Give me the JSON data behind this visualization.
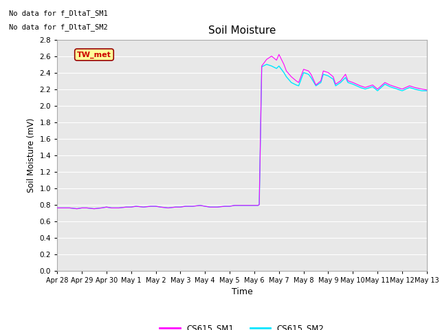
{
  "title": "Soil Moisture",
  "ylabel": "Soil Moisture (mV)",
  "xlabel": "Time",
  "ylim": [
    0.0,
    2.8
  ],
  "yticks": [
    0.0,
    0.2,
    0.4,
    0.6,
    0.8,
    1.0,
    1.2,
    1.4,
    1.6,
    1.8,
    2.0,
    2.2,
    2.4,
    2.6,
    2.8
  ],
  "no_data_text1": "No data for f_DltaT_SM1",
  "no_data_text2": "No data for f_DltaT_SM2",
  "tw_met_label": "TW_met",
  "legend_labels": [
    "CS615_SM1",
    "CS615_SM2"
  ],
  "line_colors": [
    "#ff00ff",
    "#00e5ff"
  ],
  "background_color": "#e8e8e8",
  "x_tick_labels": [
    "Apr 28",
    "Apr 29",
    "Apr 30",
    "May 1",
    "May 2",
    "May 3",
    "May 4",
    "May 5",
    "May 6",
    "May 7",
    "May 8",
    "May 9",
    "May 10",
    "May 11",
    "May 12",
    "May 13"
  ],
  "sm1_x": [
    0,
    0.2,
    0.5,
    0.8,
    1.0,
    1.2,
    1.5,
    1.8,
    2.0,
    2.2,
    2.5,
    2.8,
    3.0,
    3.2,
    3.5,
    3.8,
    4.0,
    4.2,
    4.5,
    4.8,
    5.0,
    5.2,
    5.5,
    5.8,
    6.0,
    6.2,
    6.5,
    6.8,
    7.0,
    7.2,
    7.5,
    7.8,
    8.0,
    8.1,
    8.15,
    8.2,
    8.3,
    8.5,
    8.7,
    8.9,
    9.0,
    9.2,
    9.3,
    9.5,
    9.7,
    9.8,
    10.0,
    10.2,
    10.3,
    10.5,
    10.7,
    10.8,
    11.0,
    11.2,
    11.3,
    11.5,
    11.7,
    11.8,
    12.0,
    12.3,
    12.5,
    12.8,
    13.0,
    13.3,
    13.5,
    13.8,
    14.0,
    14.3,
    14.5,
    14.8,
    15.0
  ],
  "sm1_y": [
    0.76,
    0.76,
    0.76,
    0.75,
    0.76,
    0.76,
    0.75,
    0.76,
    0.77,
    0.76,
    0.76,
    0.77,
    0.77,
    0.78,
    0.77,
    0.78,
    0.78,
    0.77,
    0.76,
    0.77,
    0.77,
    0.78,
    0.78,
    0.79,
    0.78,
    0.77,
    0.77,
    0.78,
    0.78,
    0.79,
    0.79,
    0.79,
    0.79,
    0.79,
    0.79,
    0.8,
    2.48,
    2.56,
    2.6,
    2.55,
    2.62,
    2.5,
    2.42,
    2.35,
    2.3,
    2.28,
    2.44,
    2.42,
    2.38,
    2.25,
    2.3,
    2.42,
    2.4,
    2.35,
    2.26,
    2.3,
    2.38,
    2.3,
    2.28,
    2.24,
    2.22,
    2.25,
    2.2,
    2.28,
    2.25,
    2.22,
    2.2,
    2.24,
    2.22,
    2.2,
    2.19
  ],
  "sm2_x": [
    0,
    0.2,
    0.5,
    0.8,
    1.0,
    1.2,
    1.5,
    1.8,
    2.0,
    2.2,
    2.5,
    2.8,
    3.0,
    3.2,
    3.5,
    3.8,
    4.0,
    4.2,
    4.5,
    4.8,
    5.0,
    5.2,
    5.5,
    5.8,
    6.0,
    6.2,
    6.5,
    6.8,
    7.0,
    7.2,
    7.5,
    7.8,
    8.0,
    8.1,
    8.15,
    8.2,
    8.3,
    8.5,
    8.7,
    8.9,
    9.0,
    9.2,
    9.3,
    9.5,
    9.7,
    9.8,
    10.0,
    10.2,
    10.3,
    10.5,
    10.7,
    10.8,
    11.0,
    11.2,
    11.3,
    11.5,
    11.7,
    11.8,
    12.0,
    12.3,
    12.5,
    12.8,
    13.0,
    13.3,
    13.5,
    13.8,
    14.0,
    14.3,
    14.5,
    14.8,
    15.0
  ],
  "sm2_y": [
    0.76,
    0.76,
    0.76,
    0.75,
    0.76,
    0.76,
    0.75,
    0.76,
    0.77,
    0.76,
    0.76,
    0.77,
    0.77,
    0.78,
    0.77,
    0.78,
    0.78,
    0.77,
    0.76,
    0.77,
    0.77,
    0.78,
    0.78,
    0.79,
    0.78,
    0.77,
    0.77,
    0.78,
    0.78,
    0.79,
    0.79,
    0.79,
    0.79,
    0.79,
    0.79,
    0.8,
    2.47,
    2.5,
    2.48,
    2.45,
    2.48,
    2.4,
    2.35,
    2.28,
    2.25,
    2.24,
    2.4,
    2.38,
    2.34,
    2.24,
    2.28,
    2.38,
    2.36,
    2.32,
    2.24,
    2.28,
    2.34,
    2.28,
    2.26,
    2.22,
    2.2,
    2.23,
    2.18,
    2.26,
    2.23,
    2.2,
    2.18,
    2.22,
    2.2,
    2.18,
    2.18
  ]
}
